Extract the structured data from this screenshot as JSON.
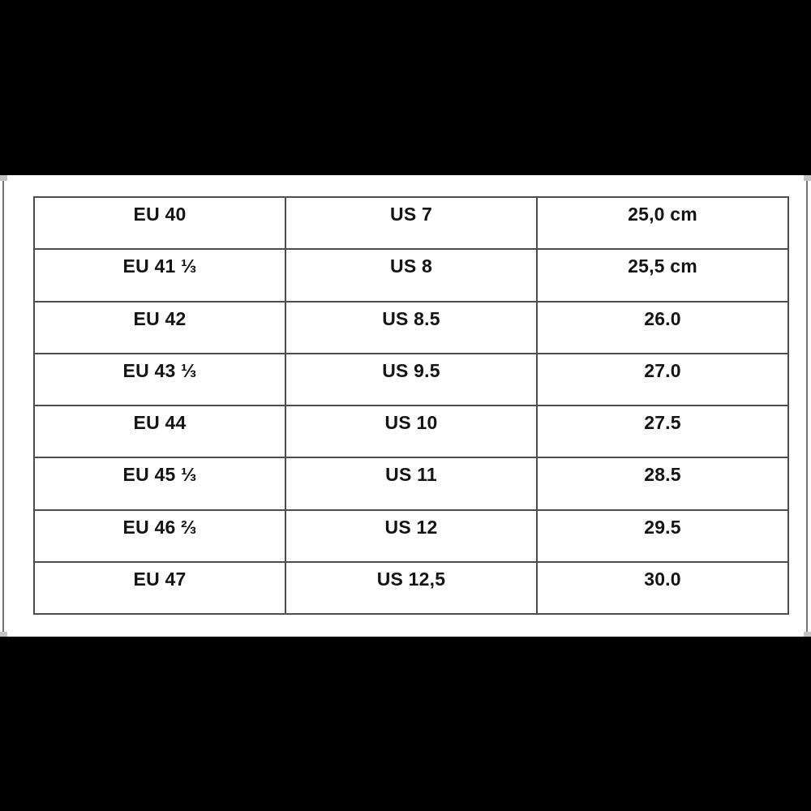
{
  "canvas": {
    "letterbox_color": "#000000",
    "content_background": "#fefefe"
  },
  "selection": {
    "handle_color": "#c3c3c3",
    "border_line_color": "#757575"
  },
  "size_table": {
    "border_color": "#4d4d4d",
    "text_color": "#141414",
    "rows": [
      {
        "eu": "EU 40",
        "us": "US 7",
        "cm": "25,0 cm"
      },
      {
        "eu": "EU 41 ⅓",
        "us": "US 8",
        "cm": "25,5 cm"
      },
      {
        "eu": "EU 42",
        "us": "US 8.5",
        "cm": "26.0"
      },
      {
        "eu": "EU 43 ⅓",
        "us": "US 9.5",
        "cm": "27.0"
      },
      {
        "eu": "EU 44",
        "us": "US 10",
        "cm": "27.5"
      },
      {
        "eu": "EU 45 ⅓",
        "us": "US 11",
        "cm": "28.5"
      },
      {
        "eu": "EU 46 ⅔",
        "us": "US 12",
        "cm": "29.5"
      },
      {
        "eu": "EU 47",
        "us": "US 12,5",
        "cm": "30.0"
      }
    ]
  }
}
